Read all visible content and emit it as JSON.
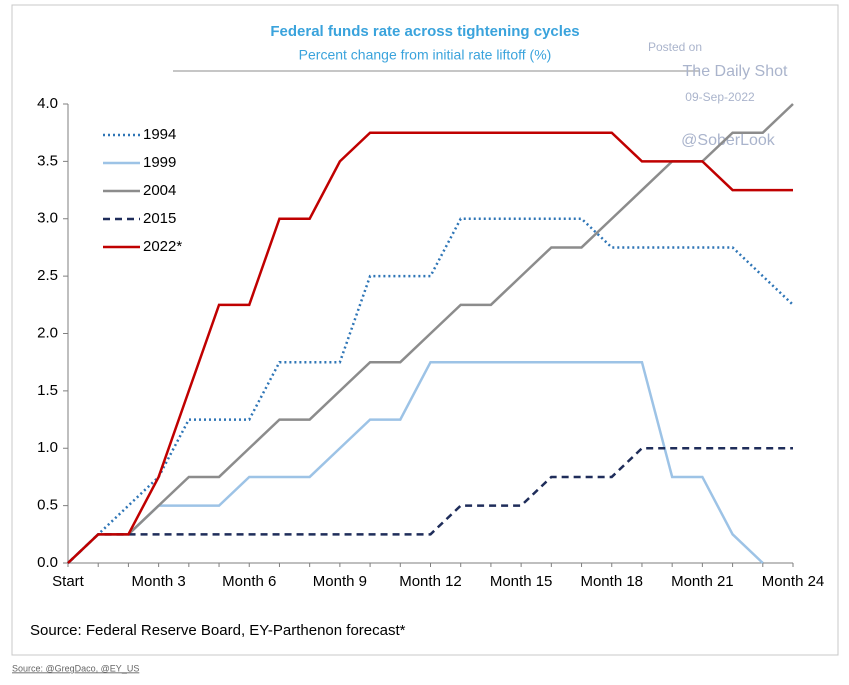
{
  "chart_data": {
    "type": "line",
    "title": "Federal funds rate across tightening cycles",
    "subtitle": "Percent change from initial rate liftoff (%)",
    "categories": [
      "Start",
      null,
      null,
      "Month 3",
      null,
      null,
      "Month 6",
      null,
      null,
      "Month 9",
      null,
      null,
      "Month 12",
      null,
      null,
      "Month 15",
      null,
      null,
      "Month 18",
      null,
      null,
      "Month 21",
      null,
      null,
      "Month 24"
    ],
    "series": [
      {
        "name": "1994",
        "color": "#2e75b6",
        "style": "dotted",
        "values": [
          0,
          0.25,
          0.5,
          0.75,
          1.25,
          1.25,
          1.25,
          1.75,
          1.75,
          1.75,
          2.5,
          2.5,
          2.5,
          3.0,
          3.0,
          3.0,
          3.0,
          3.0,
          2.75,
          2.75,
          2.75,
          2.75,
          2.75,
          2.5,
          2.25
        ]
      },
      {
        "name": "1999",
        "color": "#9dc3e6",
        "style": "solid",
        "values": [
          0,
          0.25,
          0.25,
          0.5,
          0.5,
          0.5,
          0.75,
          0.75,
          0.75,
          1.0,
          1.25,
          1.25,
          1.75,
          1.75,
          1.75,
          1.75,
          1.75,
          1.75,
          1.75,
          1.75,
          0.75,
          0.75,
          0.25,
          0,
          null
        ]
      },
      {
        "name": "2004",
        "color": "#8c8c8c",
        "style": "solid",
        "values": [
          0,
          0.25,
          0.25,
          0.5,
          0.75,
          0.75,
          1.0,
          1.25,
          1.25,
          1.5,
          1.75,
          1.75,
          2.0,
          2.25,
          2.25,
          2.5,
          2.75,
          2.75,
          3.0,
          3.25,
          3.5,
          3.5,
          3.75,
          3.75,
          4.0
        ]
      },
      {
        "name": "2015",
        "color": "#1f2d5a",
        "style": "dashed",
        "values": [
          0,
          0.25,
          0.25,
          0.25,
          0.25,
          0.25,
          0.25,
          0.25,
          0.25,
          0.25,
          0.25,
          0.25,
          0.25,
          0.5,
          0.5,
          0.5,
          0.75,
          0.75,
          0.75,
          1.0,
          1.0,
          1.0,
          1.0,
          1.0,
          1.0
        ]
      },
      {
        "name": "2022*",
        "color": "#c00000",
        "style": "solid",
        "values": [
          0,
          0.25,
          0.25,
          0.75,
          1.5,
          2.25,
          2.25,
          3.0,
          3.0,
          3.5,
          3.75,
          3.75,
          3.75,
          3.75,
          3.75,
          3.75,
          3.75,
          3.75,
          3.75,
          3.5,
          3.5,
          3.5,
          3.25,
          3.25,
          3.25
        ]
      }
    ],
    "ylim": [
      0,
      4
    ],
    "yticks": [
      {
        "value": 0,
        "label": "0.0"
      },
      {
        "value": 0.5,
        "label": "0.5"
      },
      {
        "value": 1,
        "label": "1.0"
      },
      {
        "value": 1.5,
        "label": "1.5"
      },
      {
        "value": 2,
        "label": "2.0"
      },
      {
        "value": 2.5,
        "label": "2.5"
      },
      {
        "value": 3,
        "label": "3.0"
      },
      {
        "value": 3.5,
        "label": "3.5"
      },
      {
        "value": 4,
        "label": "4.0"
      }
    ],
    "grid": false,
    "legend": "upper left",
    "source_note": "Source: Federal Reserve Board, EY-Parthenon forecast*"
  },
  "watermark": {
    "posted": "Posted on",
    "site": "The Daily Shot",
    "date": "09-Sep-2022",
    "handle": "@SoberLook"
  },
  "footer": "Source: @GregDaco, @EY_US"
}
